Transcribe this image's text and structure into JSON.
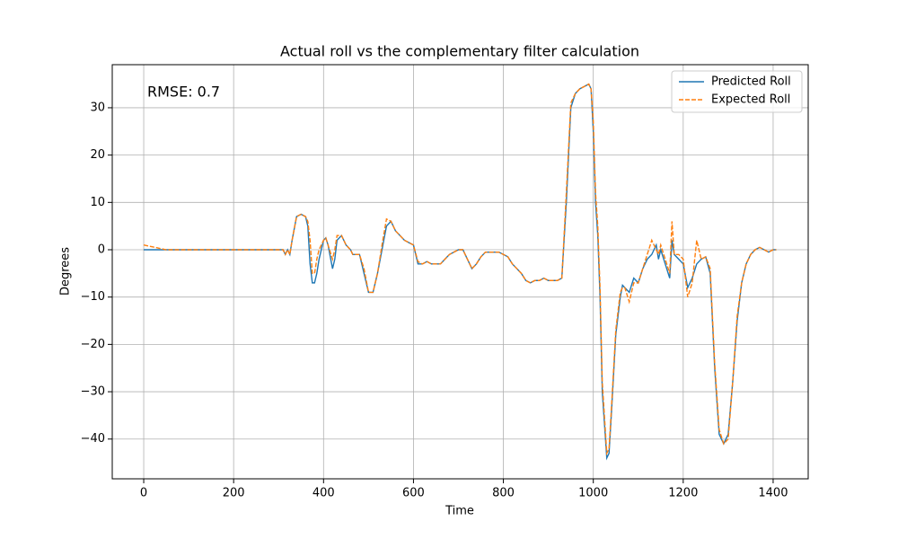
{
  "chart_data": {
    "type": "line",
    "title": "Actual roll vs the complementary filter calculation",
    "xlabel": "Time",
    "ylabel": "Degrees",
    "annotation": "RMSE: 0.7",
    "x": [
      0,
      50,
      100,
      150,
      200,
      250,
      300,
      310,
      315,
      320,
      325,
      330,
      340,
      350,
      360,
      365,
      370,
      375,
      380,
      385,
      390,
      400,
      405,
      410,
      420,
      425,
      430,
      440,
      450,
      460,
      465,
      470,
      480,
      490,
      500,
      510,
      520,
      530,
      540,
      550,
      560,
      570,
      580,
      590,
      600,
      610,
      620,
      630,
      640,
      650,
      660,
      670,
      680,
      690,
      700,
      710,
      720,
      730,
      740,
      750,
      760,
      770,
      780,
      790,
      800,
      810,
      820,
      830,
      840,
      850,
      860,
      870,
      880,
      890,
      900,
      910,
      920,
      930,
      940,
      950,
      960,
      970,
      980,
      990,
      995,
      1000,
      1005,
      1010,
      1015,
      1020,
      1030,
      1035,
      1040,
      1050,
      1060,
      1065,
      1070,
      1080,
      1090,
      1100,
      1110,
      1120,
      1130,
      1140,
      1145,
      1150,
      1160,
      1170,
      1175,
      1180,
      1190,
      1200,
      1210,
      1220,
      1230,
      1240,
      1250,
      1260,
      1270,
      1280,
      1290,
      1300,
      1310,
      1320,
      1330,
      1340,
      1350,
      1360,
      1370,
      1380,
      1390,
      1400,
      1407
    ],
    "series": [
      {
        "name": "Predicted Roll",
        "color": "#1f77b4",
        "dash": false,
        "values": [
          0,
          0,
          0,
          0,
          0,
          0,
          0,
          0,
          -1,
          0,
          -1,
          2,
          7,
          7.5,
          7,
          5,
          -3,
          -7,
          -7,
          -5,
          -2,
          2,
          2.5,
          1,
          -4,
          -2,
          2,
          3,
          1,
          0,
          -1,
          -1,
          -1,
          -5,
          -9,
          -9,
          -5,
          0,
          5,
          6,
          4,
          3,
          2,
          1.5,
          1,
          -3,
          -3,
          -2.5,
          -3,
          -3,
          -3,
          -2,
          -1,
          -0.5,
          0,
          0,
          -2,
          -4,
          -3,
          -1.5,
          -0.5,
          -0.5,
          -0.5,
          -0.5,
          -1,
          -1.5,
          -3,
          -4,
          -5,
          -6.5,
          -7,
          -6.5,
          -6.5,
          -6,
          -6.5,
          -6.5,
          -6.5,
          -6,
          10,
          30,
          33,
          34,
          34.5,
          35,
          34,
          25,
          10,
          3,
          -10,
          -30,
          -44,
          -43,
          -35,
          -18,
          -10,
          -7.5,
          -8,
          -9,
          -6,
          -7,
          -4,
          -2,
          -1,
          1,
          -2,
          0,
          -3,
          -6,
          2,
          -1,
          -2,
          -3,
          -8,
          -6,
          -3,
          -2,
          -1.5,
          -5,
          -25,
          -39,
          -41,
          -39,
          -28,
          -15,
          -7,
          -3,
          -1,
          0,
          0.5,
          0,
          -0.5,
          0,
          0
        ]
      },
      {
        "name": "Expected Roll",
        "color": "#ff7f0e",
        "dash": true,
        "values": [
          1,
          0,
          0,
          0,
          0,
          0,
          0,
          0,
          -1,
          0,
          -1,
          2,
          7,
          7.5,
          7,
          6,
          2,
          -5,
          -5,
          -2,
          0,
          2,
          2.5,
          1,
          -2,
          0,
          3,
          3,
          1,
          0,
          -1,
          -1,
          -1,
          -4,
          -9,
          -9,
          -5,
          1,
          6.5,
          6,
          4,
          3,
          2,
          1.5,
          1,
          -2.5,
          -3,
          -2.5,
          -3,
          -3,
          -3,
          -2,
          -1,
          -0.5,
          0,
          0,
          -2,
          -4,
          -3,
          -1.5,
          -0.5,
          -0.5,
          -0.5,
          -0.5,
          -1,
          -1.5,
          -3,
          -4,
          -5,
          -6.5,
          -7,
          -6.5,
          -6.5,
          -6,
          -6.5,
          -6.5,
          -6.5,
          -6,
          12,
          31,
          33,
          34,
          34.5,
          35,
          34,
          27,
          12,
          5,
          -8,
          -28,
          -43,
          -42,
          -34,
          -17,
          -9,
          -8,
          -8,
          -11,
          -7,
          -7,
          -4,
          -1,
          2,
          0,
          -1,
          1,
          -2,
          -5,
          6,
          -1,
          -1,
          -2,
          -10,
          -7,
          2,
          -2,
          -1.5,
          -4,
          -24,
          -38,
          -41,
          -40,
          -28,
          -14,
          -7,
          -3,
          -1,
          0,
          0.5,
          0,
          -0.5,
          0,
          0
        ]
      }
    ],
    "xlim": [
      -70,
      1478
    ],
    "ylim": [
      -48.4,
      39.1
    ],
    "xticks": [
      0,
      200,
      400,
      600,
      800,
      1000,
      1200,
      1400
    ],
    "yticks": [
      {
        "value": -40,
        "label": "−40"
      },
      {
        "value": -30,
        "label": "−30"
      },
      {
        "value": -20,
        "label": "−20"
      },
      {
        "value": -10,
        "label": "−10"
      },
      0,
      10,
      20,
      30
    ],
    "grid": true,
    "legend": "upper right"
  }
}
